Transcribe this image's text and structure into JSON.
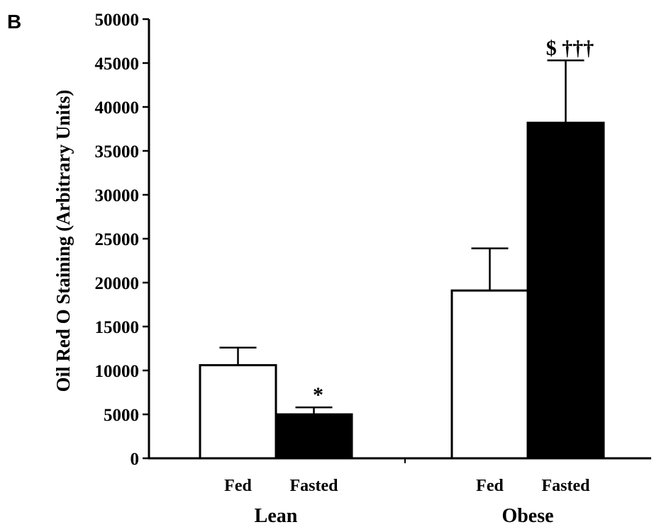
{
  "panel_label": "B",
  "chart_data": {
    "type": "bar",
    "ylabel": "Oil Red O Staining (Arbitrary Units)",
    "ylim": [
      0,
      50000
    ],
    "yticks": [
      0,
      5000,
      10000,
      15000,
      20000,
      25000,
      30000,
      35000,
      40000,
      45000,
      50000
    ],
    "groups": [
      "Lean",
      "Obese"
    ],
    "categories": [
      "Fed",
      "Fasted",
      "Fed",
      "Fasted"
    ],
    "bars": [
      {
        "group": "Lean",
        "label": "Fed",
        "value": 10600,
        "error": 2000,
        "fill": "#ffffff",
        "annotation": ""
      },
      {
        "group": "Lean",
        "label": "Fasted",
        "value": 5000,
        "error": 800,
        "fill": "#000000",
        "annotation": "*"
      },
      {
        "group": "Obese",
        "label": "Fed",
        "value": 19100,
        "error": 4800,
        "fill": "#ffffff",
        "annotation": ""
      },
      {
        "group": "Obese",
        "label": "Fasted",
        "value": 38200,
        "error": 7100,
        "fill": "#000000",
        "annotation": "$ †††"
      }
    ],
    "grid": false,
    "legend": "none"
  }
}
